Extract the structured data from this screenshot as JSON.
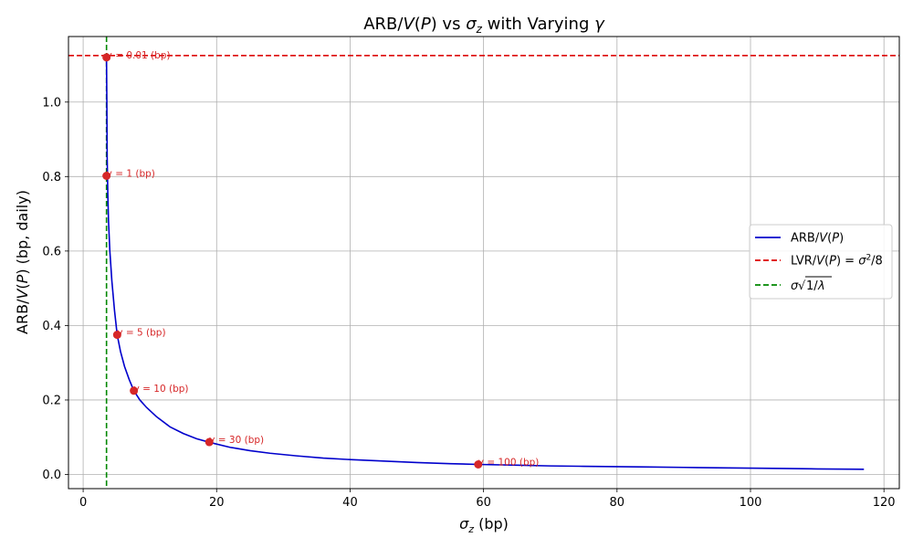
{
  "chart_data": {
    "type": "line",
    "title": "ARB/V(P) vs σ_z with Varying γ",
    "xlabel": "σ_z (bp)",
    "ylabel": "ARB/V(P) (bp, daily)",
    "xlim": [
      -2.2,
      122.3
    ],
    "ylim": [
      -0.038,
      1.176
    ],
    "x_ticks": [
      0,
      20,
      40,
      60,
      80,
      100,
      120
    ],
    "y_ticks": [
      0.0,
      0.2,
      0.4,
      0.6,
      0.8,
      1.0
    ],
    "grid": true,
    "legend_position": "center-right",
    "legend": [
      {
        "label": "ARB/V(P)",
        "color": "#0000cc",
        "style": "solid"
      },
      {
        "label": "LVR/V(P) = σ²/8",
        "color": "#dd0000",
        "style": "dashed"
      },
      {
        "label": "σ√(1/λ)",
        "color": "#008800",
        "style": "dashed"
      }
    ],
    "series": [
      {
        "name": "ARB/V(P)",
        "color": "#0000cc",
        "x": [
          3.5,
          3.55,
          3.6,
          3.7,
          3.8,
          4.0,
          4.3,
          4.7,
          5.1,
          5.6,
          6.2,
          6.9,
          7.6,
          8.5,
          9.5,
          11.0,
          13.0,
          15.0,
          17.0,
          19.0,
          22.0,
          25.0,
          28.0,
          32.0,
          36.0,
          40.0,
          45.0,
          50.0,
          55.0,
          59.2,
          65.0,
          70.0,
          75.0,
          80.0,
          85.0,
          90.0,
          95.0,
          100.0,
          105.0,
          110.0,
          117.0
        ],
        "y": [
          1.12,
          1.0,
          0.85,
          0.75,
          0.68,
          0.6,
          0.52,
          0.44,
          0.375,
          0.33,
          0.29,
          0.255,
          0.225,
          0.2,
          0.18,
          0.155,
          0.128,
          0.11,
          0.096,
          0.086,
          0.073,
          0.064,
          0.057,
          0.05,
          0.044,
          0.04,
          0.036,
          0.032,
          0.029,
          0.027,
          0.025,
          0.023,
          0.022,
          0.021,
          0.02,
          0.019,
          0.018,
          0.017,
          0.016,
          0.015,
          0.014
        ]
      }
    ],
    "reference_lines": [
      {
        "orientation": "horizontal",
        "value": 1.125,
        "color": "#dd0000",
        "style": "dashed"
      },
      {
        "orientation": "vertical",
        "value": 3.5,
        "color": "#008800",
        "style": "dashed"
      }
    ],
    "points": [
      {
        "x": 3.5,
        "y": 1.12,
        "label": "γ = 0.01 (bp)"
      },
      {
        "x": 3.5,
        "y": 0.802,
        "label": "γ = 1 (bp)"
      },
      {
        "x": 5.1,
        "y": 0.375,
        "label": "γ = 5 (bp)"
      },
      {
        "x": 7.6,
        "y": 0.225,
        "label": "γ = 10 (bp)"
      },
      {
        "x": 18.9,
        "y": 0.087,
        "label": "γ = 30 (bp)"
      },
      {
        "x": 59.2,
        "y": 0.027,
        "label": "γ = 100 (bp)"
      }
    ],
    "point_color": "#d62728"
  }
}
